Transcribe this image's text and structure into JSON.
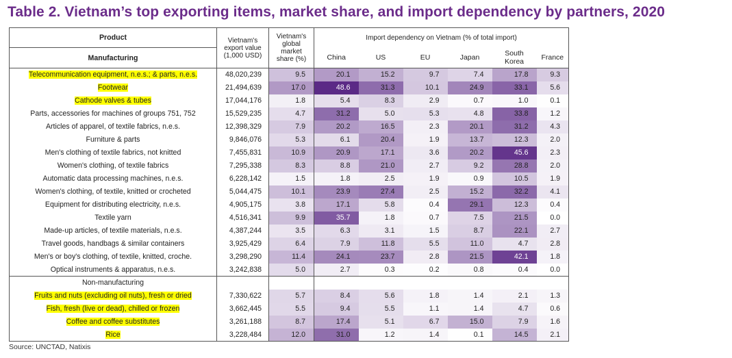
{
  "title": "Table 2. Vietnam’s top exporting items, market share, and import dependency by partners, 2020",
  "headers": {
    "product": "Product",
    "export_value": "Vietnam's export value (1,000 USD)",
    "market_share": "Vietnam's global market share (%)",
    "import_dependency": "Import dependency on Vietnam (% of total import)",
    "partners": [
      "China",
      "US",
      "EU",
      "Japan",
      "South Korea",
      "France"
    ]
  },
  "sections": [
    {
      "name": "Manufacturing",
      "rows": [
        {
          "product": "Telecommunication equipment, n.e.s.; & parts, n.e.s.",
          "export_value": "48,020,239",
          "share": "9.5",
          "values": [
            "20.1",
            "15.2",
            "9.7",
            "7.4",
            "17.8",
            "9.3"
          ],
          "highlighted": true
        },
        {
          "product": "Footwear",
          "export_value": "21,494,639",
          "share": "17.0",
          "values": [
            "48.6",
            "31.3",
            "10.1",
            "24.9",
            "33.1",
            "5.6"
          ],
          "highlighted": true
        },
        {
          "product": "Cathode valves & tubes",
          "export_value": "17,044,176",
          "share": "1.8",
          "values": [
            "5.4",
            "8.3",
            "2.9",
            "0.7",
            "1.0",
            "0.1"
          ],
          "highlighted": true
        },
        {
          "product": "Parts, accessories for machines of groups 751, 752",
          "export_value": "15,529,235",
          "share": "4.7",
          "values": [
            "31.2",
            "5.0",
            "5.3",
            "4.8",
            "33.8",
            "1.2"
          ],
          "highlighted": false
        },
        {
          "product": "Articles of apparel, of textile fabrics, n.e.s.",
          "export_value": "12,398,329",
          "share": "7.9",
          "values": [
            "20.2",
            "16.5",
            "2.3",
            "20.1",
            "31.2",
            "4.3"
          ],
          "highlighted": false
        },
        {
          "product": "Furniture & parts",
          "export_value": "9,846,076",
          "share": "5.3",
          "values": [
            "6.1",
            "20.4",
            "1.9",
            "13.7",
            "12.3",
            "2.0"
          ],
          "highlighted": false
        },
        {
          "product": "Men's clothing of textile fabrics, not knitted",
          "export_value": "7,455,831",
          "share": "10.9",
          "values": [
            "20.9",
            "17.1",
            "3.6",
            "20.2",
            "45.6",
            "2.3"
          ],
          "highlighted": false
        },
        {
          "product": "Women's clothing, of textile fabrics",
          "export_value": "7,295,338",
          "share": "8.3",
          "values": [
            "8.8",
            "21.0",
            "2.7",
            "9.2",
            "28.8",
            "2.0"
          ],
          "highlighted": false
        },
        {
          "product": "Automatic data processing machines, n.e.s.",
          "export_value": "6,228,142",
          "share": "1.5",
          "values": [
            "1.8",
            "2.5",
            "1.9",
            "0.9",
            "10.5",
            "1.9"
          ],
          "highlighted": false
        },
        {
          "product": "Women's clothing, of textile, knitted or crocheted",
          "export_value": "5,044,475",
          "share": "10.1",
          "values": [
            "23.9",
            "27.4",
            "2.5",
            "15.2",
            "32.2",
            "4.1"
          ],
          "highlighted": false
        },
        {
          "product": "Equipment for distributing electricity, n.e.s.",
          "export_value": "4,905,175",
          "share": "3.8",
          "values": [
            "17.1",
            "5.8",
            "0.4",
            "29.1",
            "12.3",
            "0.4"
          ],
          "highlighted": false
        },
        {
          "product": "Textile yarn",
          "export_value": "4,516,341",
          "share": "9.9",
          "values": [
            "35.7",
            "1.8",
            "0.7",
            "7.5",
            "21.5",
            "0.0"
          ],
          "highlighted": false
        },
        {
          "product": "Made-up articles, of textile materials, n.e.s.",
          "export_value": "4,387,244",
          "share": "3.5",
          "values": [
            "6.3",
            "3.1",
            "1.5",
            "8.7",
            "22.1",
            "2.7"
          ],
          "highlighted": false
        },
        {
          "product": "Travel goods, handbags & similar containers",
          "export_value": "3,925,429",
          "share": "6.4",
          "values": [
            "7.9",
            "11.8",
            "5.5",
            "11.0",
            "4.7",
            "2.8"
          ],
          "highlighted": false
        },
        {
          "product": "Men's or boy's clothing, of textile, knitted, croche.",
          "export_value": "3,298,290",
          "share": "11.4",
          "values": [
            "24.1",
            "23.7",
            "2.8",
            "21.5",
            "42.1",
            "1.8"
          ],
          "highlighted": false
        },
        {
          "product": "Optical instruments & apparatus, n.e.s.",
          "export_value": "3,242,838",
          "share": "5.0",
          "values": [
            "2.7",
            "0.3",
            "0.2",
            "0.8",
            "0.4",
            "0.0"
          ],
          "highlighted": false
        }
      ]
    },
    {
      "name": "Non-manufacturing",
      "rows": [
        {
          "product": "Fruits and nuts (excluding oil nuts), fresh or dried",
          "export_value": "7,330,622",
          "share": "5.7",
          "values": [
            "8.4",
            "5.6",
            "1.8",
            "1.4",
            "2.1",
            "1.3"
          ],
          "highlighted": true
        },
        {
          "product": "Fish, fresh (live or dead), chilled or frozen",
          "export_value": "3,662,445",
          "share": "5.5",
          "values": [
            "9.4",
            "5.5",
            "1.1",
            "1.4",
            "4.7",
            "0.6"
          ],
          "highlighted": true
        },
        {
          "product": "Coffee and coffee substitutes",
          "export_value": "3,261,188",
          "share": "8.7",
          "values": [
            "17.4",
            "5.1",
            "6.7",
            "15.0",
            "7.9",
            "1.6"
          ],
          "highlighted": true
        },
        {
          "product": "Rice",
          "export_value": "3,228,484",
          "share": "12.0",
          "values": [
            "31.0",
            "1.2",
            "1.4",
            "0.1",
            "14.5",
            "2.1"
          ],
          "highlighted": true
        }
      ]
    }
  ],
  "source": "Source: UNCTAD, Natixis",
  "colors": {
    "title": "#6b2c8a",
    "highlight": "#ffff00",
    "heat_max": "#5b2a86",
    "heat_min": "#ffffff"
  }
}
